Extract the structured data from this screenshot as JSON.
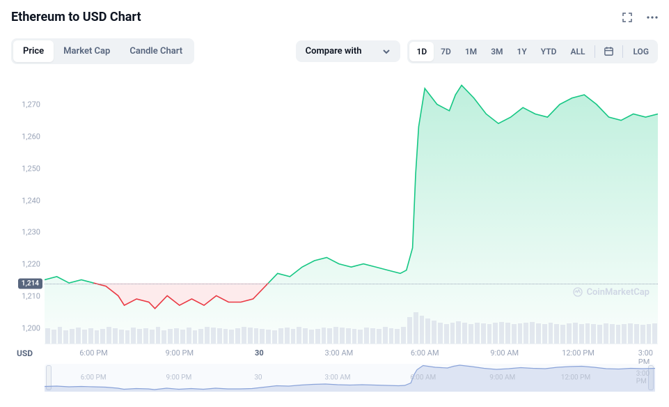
{
  "header": {
    "title": "Ethereum to USD Chart"
  },
  "tabs": {
    "items": [
      "Price",
      "Market Cap",
      "Candle Chart"
    ],
    "active_index": 0
  },
  "compare": {
    "label": "Compare with"
  },
  "ranges": {
    "items": [
      "1D",
      "7D",
      "1M",
      "3M",
      "1Y",
      "YTD",
      "ALL"
    ],
    "active_index": 0,
    "log_label": "LOG"
  },
  "chart": {
    "type": "area",
    "ylim": [
      1195,
      1280
    ],
    "ytick_step": 10,
    "yticks": [
      1200,
      1210,
      1220,
      1230,
      1240,
      1250,
      1260,
      1270
    ],
    "current_value": 1214,
    "xticks": [
      {
        "label": "6:00 PM",
        "pos": 0.08,
        "bold": false
      },
      {
        "label": "9:00 PM",
        "pos": 0.22,
        "bold": false
      },
      {
        "label": "30",
        "pos": 0.35,
        "bold": true
      },
      {
        "label": "3:00 AM",
        "pos": 0.48,
        "bold": false
      },
      {
        "label": "6:00 AM",
        "pos": 0.62,
        "bold": false
      },
      {
        "label": "9:00 AM",
        "pos": 0.75,
        "bold": false
      },
      {
        "label": "12:00 PM",
        "pos": 0.87,
        "bold": false
      },
      {
        "label": "3:00 PM",
        "pos": 0.98,
        "bold": false
      }
    ],
    "usd_label": "USD",
    "watermark": "CoinMarketCap",
    "colors": {
      "line_up": "#16c784",
      "line_down": "#ea3943",
      "fill_up_top": "rgba(22,199,132,0.28)",
      "fill_up_bottom": "rgba(22,199,132,0.02)",
      "fill_down": "rgba(234,57,67,0.10)",
      "grid": "#eff2f5",
      "axis_text": "#9aa4b8",
      "volume_bar": "#cfd6e4",
      "dashed": "#9aa4b8",
      "current_bg": "#58667e"
    },
    "price_series": [
      {
        "x": 0.0,
        "y": 1215
      },
      {
        "x": 0.02,
        "y": 1216
      },
      {
        "x": 0.04,
        "y": 1214
      },
      {
        "x": 0.06,
        "y": 1215
      },
      {
        "x": 0.08,
        "y": 1214
      },
      {
        "x": 0.1,
        "y": 1213
      },
      {
        "x": 0.12,
        "y": 1210
      },
      {
        "x": 0.13,
        "y": 1207
      },
      {
        "x": 0.15,
        "y": 1209
      },
      {
        "x": 0.17,
        "y": 1208
      },
      {
        "x": 0.18,
        "y": 1206
      },
      {
        "x": 0.2,
        "y": 1210
      },
      {
        "x": 0.22,
        "y": 1207
      },
      {
        "x": 0.24,
        "y": 1209
      },
      {
        "x": 0.26,
        "y": 1207
      },
      {
        "x": 0.28,
        "y": 1210
      },
      {
        "x": 0.3,
        "y": 1208
      },
      {
        "x": 0.32,
        "y": 1208
      },
      {
        "x": 0.34,
        "y": 1209
      },
      {
        "x": 0.36,
        "y": 1213
      },
      {
        "x": 0.38,
        "y": 1217
      },
      {
        "x": 0.4,
        "y": 1216
      },
      {
        "x": 0.42,
        "y": 1219
      },
      {
        "x": 0.44,
        "y": 1221
      },
      {
        "x": 0.46,
        "y": 1222
      },
      {
        "x": 0.48,
        "y": 1220
      },
      {
        "x": 0.5,
        "y": 1219
      },
      {
        "x": 0.52,
        "y": 1220
      },
      {
        "x": 0.54,
        "y": 1219
      },
      {
        "x": 0.56,
        "y": 1218
      },
      {
        "x": 0.58,
        "y": 1217
      },
      {
        "x": 0.59,
        "y": 1218
      },
      {
        "x": 0.6,
        "y": 1225
      },
      {
        "x": 0.605,
        "y": 1248
      },
      {
        "x": 0.61,
        "y": 1263
      },
      {
        "x": 0.62,
        "y": 1275
      },
      {
        "x": 0.64,
        "y": 1270
      },
      {
        "x": 0.66,
        "y": 1268
      },
      {
        "x": 0.67,
        "y": 1273
      },
      {
        "x": 0.68,
        "y": 1276
      },
      {
        "x": 0.7,
        "y": 1272
      },
      {
        "x": 0.72,
        "y": 1267
      },
      {
        "x": 0.74,
        "y": 1264
      },
      {
        "x": 0.76,
        "y": 1266
      },
      {
        "x": 0.78,
        "y": 1269
      },
      {
        "x": 0.8,
        "y": 1267
      },
      {
        "x": 0.82,
        "y": 1266
      },
      {
        "x": 0.84,
        "y": 1270
      },
      {
        "x": 0.86,
        "y": 1272
      },
      {
        "x": 0.88,
        "y": 1273
      },
      {
        "x": 0.9,
        "y": 1270
      },
      {
        "x": 0.92,
        "y": 1266
      },
      {
        "x": 0.94,
        "y": 1265
      },
      {
        "x": 0.96,
        "y": 1267
      },
      {
        "x": 0.98,
        "y": 1266
      },
      {
        "x": 1.0,
        "y": 1267
      }
    ],
    "baseline": 1214,
    "volume_heights": [
      22,
      20,
      24,
      19,
      21,
      23,
      20,
      22,
      19,
      21,
      24,
      22,
      20,
      19,
      23,
      21,
      22,
      20,
      24,
      19,
      21,
      22,
      20,
      23,
      19,
      21,
      24,
      23,
      22,
      21,
      20,
      22,
      24,
      23,
      22,
      21,
      20,
      19,
      22,
      23,
      21,
      24,
      22,
      20,
      21,
      23,
      22,
      24,
      23,
      22,
      21,
      20,
      23,
      22,
      21,
      24,
      22,
      21,
      24,
      38,
      45,
      40,
      36,
      33,
      30,
      28,
      30,
      32,
      30,
      28,
      30,
      29,
      28,
      30,
      31,
      30,
      28,
      29,
      30,
      31,
      29,
      28,
      30,
      28,
      27,
      29,
      30,
      28,
      29,
      28,
      27,
      29,
      28,
      27,
      28,
      29,
      28,
      27,
      28,
      29
    ]
  },
  "brush": {
    "ticks": [
      {
        "label": "6:00 PM",
        "pos": 0.08
      },
      {
        "label": "9:00 PM",
        "pos": 0.22
      },
      {
        "label": "30",
        "pos": 0.35
      },
      {
        "label": "3:00 AM",
        "pos": 0.48
      },
      {
        "label": "6:00 AM",
        "pos": 0.62
      },
      {
        "label": "9:00 AM",
        "pos": 0.75
      },
      {
        "label": "12:00 PM",
        "pos": 0.87
      },
      {
        "label": "3:00 PM",
        "pos": 0.98
      }
    ],
    "colors": {
      "line": "#8aa3d9",
      "fill": "rgba(138,163,217,0.25)"
    }
  }
}
